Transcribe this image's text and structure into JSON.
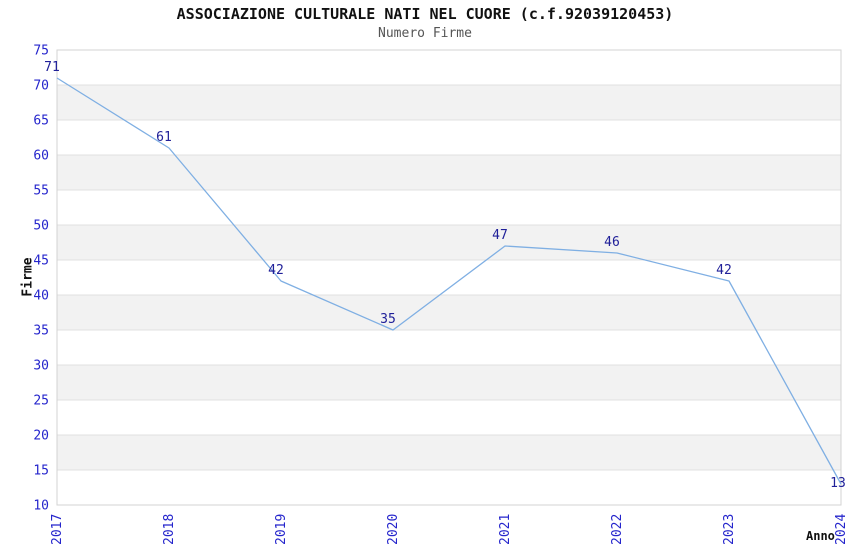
{
  "header": {
    "title": "ASSOCIAZIONE CULTURALE NATI NEL CUORE (c.f.92039120453)",
    "subtitle": "Numero Firme"
  },
  "chart_data": {
    "type": "line",
    "title": "ASSOCIAZIONE CULTURALE NATI NEL CUORE (c.f.92039120453)",
    "subtitle": "Numero Firme",
    "xlabel": "Anno",
    "ylabel": "Firme",
    "categories": [
      "2017",
      "2018",
      "2019",
      "2020",
      "2021",
      "2022",
      "2023",
      "2024"
    ],
    "values": [
      71,
      61,
      42,
      35,
      47,
      46,
      42,
      13
    ],
    "ylim": [
      10,
      75
    ],
    "ytick_step": 5,
    "grid": true,
    "alternating_bands": true,
    "legend_position": "none",
    "data_labels_shown": true,
    "colors": {
      "line": "#7fafe3",
      "tick_label": "#2525cc",
      "data_label": "#202099",
      "band_fill": "#f2f2f2",
      "gridline": "#e0e0e0",
      "plot_border": "#d3d3d3",
      "title": "#111111",
      "subtitle": "#555555",
      "axis_title": "#111111",
      "background": "#ffffff"
    }
  }
}
